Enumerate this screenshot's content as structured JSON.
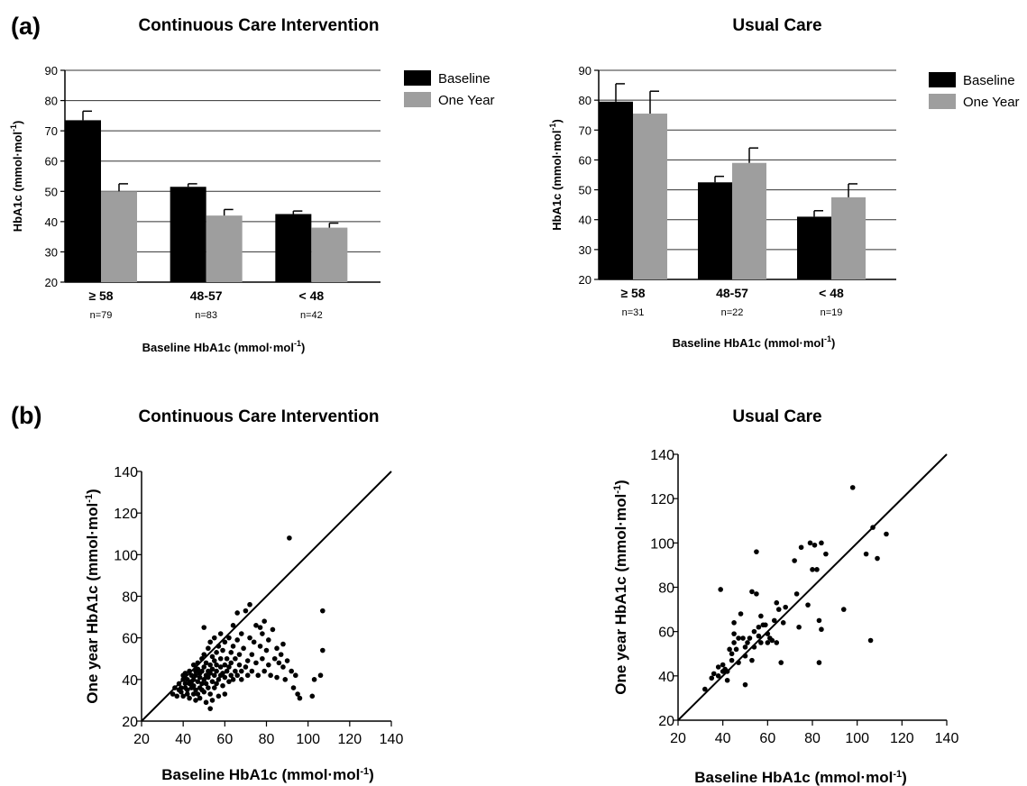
{
  "panel_labels": {
    "a": "(a)",
    "b": "(b)"
  },
  "colors": {
    "baseline": "#000000",
    "one_year": "#9e9e9e",
    "grid": "#333333",
    "point": "#000000"
  },
  "chart_data": [
    {
      "type": "bar",
      "panel": "a",
      "title": "Continuous Care Intervention",
      "categories": [
        "≥ 58",
        "48-57",
        "< 48"
      ],
      "n_labels": [
        "n=79",
        "n=83",
        "n=42"
      ],
      "xlabel": "Baseline HbA1c (mmol·mol",
      "xlabel_sup": "-1",
      "xlabel_end": ")",
      "ylabel": "HbA1c (mmol·mol",
      "ylabel_sup": "-1",
      "ylabel_end": ")",
      "ylim": [
        20,
        90
      ],
      "yticks": [
        20,
        30,
        40,
        50,
        60,
        70,
        80,
        90
      ],
      "grid": true,
      "legend_position": "top-right",
      "series": [
        {
          "name": "Baseline",
          "values": [
            73.5,
            51.5,
            42.5
          ],
          "errors": [
            3,
            1,
            1
          ]
        },
        {
          "name": "One Year",
          "values": [
            50,
            42,
            38
          ],
          "errors": [
            2.5,
            2,
            1.5
          ]
        }
      ]
    },
    {
      "type": "bar",
      "panel": "a",
      "title": "Usual Care",
      "categories": [
        "≥ 58",
        "48-57",
        "< 48"
      ],
      "n_labels": [
        "n=31",
        "n=22",
        "n=19"
      ],
      "xlabel": "Baseline HbA1c (mmol·mol",
      "xlabel_sup": "-1",
      "xlabel_end": ")",
      "ylabel": "HbA1c (mmol·mol",
      "ylabel_sup": "-1",
      "ylabel_end": ")",
      "ylim": [
        20,
        90
      ],
      "yticks": [
        20,
        30,
        40,
        50,
        60,
        70,
        80,
        90
      ],
      "grid": true,
      "legend_position": "top-right",
      "series": [
        {
          "name": "Baseline",
          "values": [
            79.5,
            52.5,
            41
          ],
          "errors": [
            6,
            2,
            2
          ]
        },
        {
          "name": "One Year",
          "values": [
            75.5,
            59,
            47.5
          ],
          "errors": [
            7.5,
            5,
            4.5
          ]
        }
      ]
    },
    {
      "type": "scatter",
      "panel": "b",
      "title": "Continuous Care Intervention",
      "xlabel": "Baseline HbA1c (mmol·mol",
      "xlabel_sup": "-1",
      "xlabel_end": ")",
      "ylabel": "One year HbA1c (mmol·mol",
      "ylabel_sup": "-1",
      "ylabel_end": ")",
      "xlim": [
        20,
        140
      ],
      "ylim": [
        20,
        140
      ],
      "xticks": [
        20,
        40,
        60,
        80,
        100,
        120,
        140
      ],
      "yticks": [
        20,
        40,
        60,
        80,
        100,
        120,
        140
      ],
      "identity_line": true,
      "points": [
        [
          35,
          33
        ],
        [
          36,
          36
        ],
        [
          37,
          32
        ],
        [
          38,
          35
        ],
        [
          38,
          38
        ],
        [
          39,
          34
        ],
        [
          39,
          36
        ],
        [
          40,
          40
        ],
        [
          40,
          32
        ],
        [
          40,
          42
        ],
        [
          41,
          36
        ],
        [
          41,
          43
        ],
        [
          41,
          38
        ],
        [
          42,
          33
        ],
        [
          42,
          40
        ],
        [
          42,
          35
        ],
        [
          43,
          44
        ],
        [
          43,
          38
        ],
        [
          43,
          31
        ],
        [
          44,
          36
        ],
        [
          44,
          42
        ],
        [
          44,
          39
        ],
        [
          45,
          47
        ],
        [
          45,
          33
        ],
        [
          45,
          40
        ],
        [
          45,
          37
        ],
        [
          46,
          44
        ],
        [
          46,
          35
        ],
        [
          46,
          42
        ],
        [
          46,
          30
        ],
        [
          47,
          39
        ],
        [
          47,
          45
        ],
        [
          47,
          33
        ],
        [
          47,
          48
        ],
        [
          48,
          36
        ],
        [
          48,
          41
        ],
        [
          48,
          43
        ],
        [
          48,
          31
        ],
        [
          49,
          50
        ],
        [
          49,
          38
        ],
        [
          49,
          44
        ],
        [
          49,
          35
        ],
        [
          50,
          40
        ],
        [
          50,
          46
        ],
        [
          50,
          52
        ],
        [
          50,
          34
        ],
        [
          50,
          65
        ],
        [
          51,
          42
        ],
        [
          51,
          38
        ],
        [
          51,
          48
        ],
        [
          51,
          29
        ],
        [
          52,
          44
        ],
        [
          52,
          36
        ],
        [
          52,
          55
        ],
        [
          52,
          41
        ],
        [
          53,
          47
        ],
        [
          53,
          33
        ],
        [
          53,
          43
        ],
        [
          53,
          58
        ],
        [
          53,
          26
        ],
        [
          54,
          39
        ],
        [
          54,
          51
        ],
        [
          54,
          45
        ],
        [
          54,
          30
        ],
        [
          55,
          49
        ],
        [
          55,
          42
        ],
        [
          55,
          36
        ],
        [
          55,
          60
        ],
        [
          56,
          44
        ],
        [
          56,
          53
        ],
        [
          56,
          38
        ],
        [
          56,
          47
        ],
        [
          57,
          40
        ],
        [
          57,
          56
        ],
        [
          57,
          32
        ],
        [
          58,
          46
        ],
        [
          58,
          42
        ],
        [
          58,
          50
        ],
        [
          58,
          62
        ],
        [
          59,
          43
        ],
        [
          59,
          37
        ],
        [
          59,
          54
        ],
        [
          60,
          47
        ],
        [
          60,
          41
        ],
        [
          60,
          58
        ],
        [
          60,
          33
        ],
        [
          61,
          44
        ],
        [
          61,
          50
        ],
        [
          62,
          39
        ],
        [
          62,
          60
        ],
        [
          62,
          46
        ],
        [
          63,
          42
        ],
        [
          63,
          53
        ],
        [
          63,
          48
        ],
        [
          64,
          56
        ],
        [
          64,
          40
        ],
        [
          64,
          66
        ],
        [
          65,
          44
        ],
        [
          65,
          50
        ],
        [
          66,
          42
        ],
        [
          66,
          59
        ],
        [
          66,
          72
        ],
        [
          67,
          47
        ],
        [
          67,
          52
        ],
        [
          68,
          44
        ],
        [
          68,
          62
        ],
        [
          68,
          40
        ],
        [
          69,
          55
        ],
        [
          70,
          46
        ],
        [
          70,
          73
        ],
        [
          71,
          49
        ],
        [
          71,
          42
        ],
        [
          72,
          60
        ],
        [
          72,
          76
        ],
        [
          73,
          52
        ],
        [
          73,
          44
        ],
        [
          74,
          58
        ],
        [
          75,
          48
        ],
        [
          75,
          66
        ],
        [
          76,
          42
        ],
        [
          77,
          56
        ],
        [
          77,
          65
        ],
        [
          78,
          50
        ],
        [
          78,
          62
        ],
        [
          79,
          44
        ],
        [
          79,
          68
        ],
        [
          80,
          54
        ],
        [
          81,
          59
        ],
        [
          81,
          47
        ],
        [
          82,
          42
        ],
        [
          83,
          64
        ],
        [
          84,
          50
        ],
        [
          85,
          55
        ],
        [
          85,
          41
        ],
        [
          86,
          48
        ],
        [
          87,
          52
        ],
        [
          88,
          57
        ],
        [
          88,
          46
        ],
        [
          89,
          40
        ],
        [
          90,
          49
        ],
        [
          91,
          108
        ],
        [
          92,
          44
        ],
        [
          93,
          36
        ],
        [
          94,
          42
        ],
        [
          95,
          33
        ],
        [
          96,
          31
        ],
        [
          102,
          32
        ],
        [
          103,
          40
        ],
        [
          106,
          42
        ],
        [
          107,
          54
        ],
        [
          107,
          73
        ]
      ]
    },
    {
      "type": "scatter",
      "panel": "b",
      "title": "Usual Care",
      "xlabel": "Baseline HbA1c (mmol·mol",
      "xlabel_sup": "-1",
      "xlabel_end": ")",
      "ylabel": "One year HbA1c (mmol·mol",
      "ylabel_sup": "-1",
      "ylabel_end": ")",
      "xlim": [
        20,
        140
      ],
      "ylim": [
        20,
        140
      ],
      "xticks": [
        20,
        40,
        60,
        80,
        100,
        120,
        140
      ],
      "yticks": [
        20,
        40,
        60,
        80,
        100,
        120,
        140
      ],
      "identity_line": true,
      "points": [
        [
          32,
          34
        ],
        [
          35,
          39
        ],
        [
          36,
          41
        ],
        [
          38,
          40
        ],
        [
          38,
          44
        ],
        [
          39,
          79
        ],
        [
          40,
          42
        ],
        [
          40,
          45
        ],
        [
          41,
          43
        ],
        [
          42,
          42
        ],
        [
          42,
          38
        ],
        [
          43,
          52
        ],
        [
          44,
          47
        ],
        [
          44,
          50
        ],
        [
          45,
          55
        ],
        [
          45,
          64
        ],
        [
          45,
          59
        ],
        [
          46,
          52
        ],
        [
          47,
          46
        ],
        [
          47,
          57
        ],
        [
          48,
          68
        ],
        [
          49,
          57
        ],
        [
          50,
          49
        ],
        [
          50,
          36
        ],
        [
          50,
          53
        ],
        [
          51,
          55
        ],
        [
          52,
          57
        ],
        [
          53,
          78
        ],
        [
          53,
          47
        ],
        [
          54,
          60
        ],
        [
          54,
          53
        ],
        [
          55,
          77
        ],
        [
          55,
          96
        ],
        [
          56,
          58
        ],
        [
          56,
          62
        ],
        [
          57,
          55
        ],
        [
          57,
          67
        ],
        [
          58,
          63
        ],
        [
          59,
          63
        ],
        [
          60,
          59
        ],
        [
          60,
          55
        ],
        [
          61,
          57
        ],
        [
          62,
          56
        ],
        [
          63,
          65
        ],
        [
          64,
          73
        ],
        [
          64,
          55
        ],
        [
          65,
          70
        ],
        [
          66,
          46
        ],
        [
          67,
          64
        ],
        [
          68,
          71
        ],
        [
          72,
          92
        ],
        [
          73,
          77
        ],
        [
          74,
          62
        ],
        [
          75,
          98
        ],
        [
          78,
          72
        ],
        [
          79,
          100
        ],
        [
          80,
          88
        ],
        [
          81,
          99
        ],
        [
          82,
          88
        ],
        [
          84,
          100
        ],
        [
          83,
          65
        ],
        [
          84,
          61
        ],
        [
          83,
          46
        ],
        [
          86,
          95
        ],
        [
          94,
          70
        ],
        [
          98,
          125
        ],
        [
          104,
          95
        ],
        [
          106,
          56
        ],
        [
          107,
          107
        ],
        [
          109,
          93
        ],
        [
          113,
          104
        ]
      ]
    }
  ]
}
